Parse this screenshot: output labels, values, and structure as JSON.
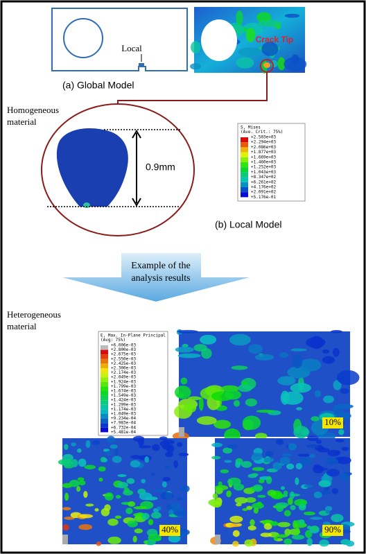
{
  "global_model": {
    "local_label": "Local",
    "crack_tip_label": "Crack Tip",
    "caption": "(a) Global Model"
  },
  "local_model": {
    "material_lines": [
      "Homogeneous",
      "material"
    ],
    "dimension_label": "0.9mm",
    "caption": "(b) Local Model",
    "legend": {
      "title": "S, Mises",
      "subtitle": "(Ave. Crit.: 75%)",
      "labels": [
        "+2.503e+03",
        "+2.294e+03",
        "+2.086e+03",
        "+1.877e+03",
        "+1.669e+03",
        "+1.460e+03",
        "+1.252e+03",
        "+1.043e+03",
        "+8.347e+02",
        "+6.261e+02",
        "+4.176e+02",
        "+2.091e+02",
        "+5.176e-01"
      ]
    }
  },
  "banner": {
    "lines": [
      "Example of the",
      "analysis results"
    ]
  },
  "heterogeneous": {
    "material_lines": [
      "Heterogeneous",
      "material"
    ],
    "legend": {
      "title": "E, Max. In-Plane Principal",
      "subtitle": "(Avg: 75%)",
      "labels": [
        "+6.006e-03",
        "+2.800e-03",
        "+2.675e-03",
        "+2.550e-03",
        "+2.425e-03",
        "+2.300e-03",
        "+2.174e-03",
        "+2.049e-03",
        "+1.924e-03",
        "+1.799e-03",
        "+1.674e-03",
        "+1.549e-03",
        "+1.424e-03",
        "+1.299e-03",
        "+1.174e-03",
        "+1.049e-03",
        "+9.234e-04",
        "+7.983e-04",
        "+6.732e-04",
        "+5.481e-04"
      ]
    },
    "panels": [
      {
        "label": "10%"
      },
      {
        "label": "40%"
      },
      {
        "label": "90%"
      }
    ]
  }
}
